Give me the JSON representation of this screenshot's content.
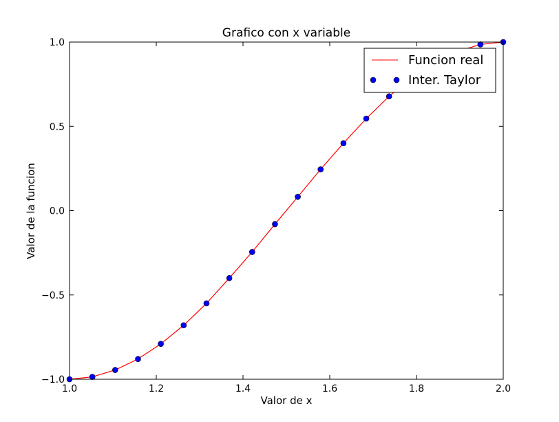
{
  "chart_data": {
    "type": "line",
    "title": "Grafico con x variable",
    "xlabel": "Valor de x",
    "ylabel": "Valor de la funcion",
    "xlim": [
      1.0,
      2.0
    ],
    "ylim": [
      -1.0,
      1.0
    ],
    "xticks": [
      1.0,
      1.2,
      1.4,
      1.6,
      1.8,
      2.0
    ],
    "xtick_labels": [
      "1.0",
      "1.2",
      "1.4",
      "1.6",
      "1.8",
      "2.0"
    ],
    "yticks": [
      -1.0,
      -0.5,
      0.0,
      0.5,
      1.0
    ],
    "ytick_labels": [
      "−1.0",
      "−0.5",
      "0.0",
      "0.5",
      "1.0"
    ],
    "grid": false,
    "legend_position": "top-right",
    "series": [
      {
        "name": "Funcion real",
        "style": "line",
        "color": "#ff0000",
        "x": [
          1.0,
          1.0526,
          1.1053,
          1.1579,
          1.2105,
          1.2632,
          1.3158,
          1.3684,
          1.4211,
          1.4737,
          1.5263,
          1.5789,
          1.6316,
          1.6842,
          1.7368,
          1.7895,
          1.8421,
          1.8947,
          1.9474,
          2.0
        ],
        "y": [
          -1.0,
          -0.986,
          -0.945,
          -0.88,
          -0.79,
          -0.68,
          -0.55,
          -0.4,
          -0.245,
          -0.08,
          0.082,
          0.245,
          0.4,
          0.546,
          0.678,
          0.79,
          0.88,
          0.945,
          0.986,
          1.0
        ]
      },
      {
        "name": "Inter. Taylor",
        "style": "marker",
        "color": "#0000ff",
        "x": [
          1.0,
          1.0526,
          1.1053,
          1.1579,
          1.2105,
          1.2632,
          1.3158,
          1.3684,
          1.4211,
          1.4737,
          1.5263,
          1.5789,
          1.6316,
          1.6842,
          1.7368,
          1.7895,
          1.8421,
          1.8947,
          1.9474,
          2.0
        ],
        "y": [
          -1.0,
          -0.986,
          -0.945,
          -0.88,
          -0.79,
          -0.68,
          -0.55,
          -0.4,
          -0.245,
          -0.08,
          0.082,
          0.245,
          0.4,
          0.546,
          0.678,
          0.79,
          0.88,
          0.945,
          0.986,
          1.0
        ]
      }
    ]
  }
}
